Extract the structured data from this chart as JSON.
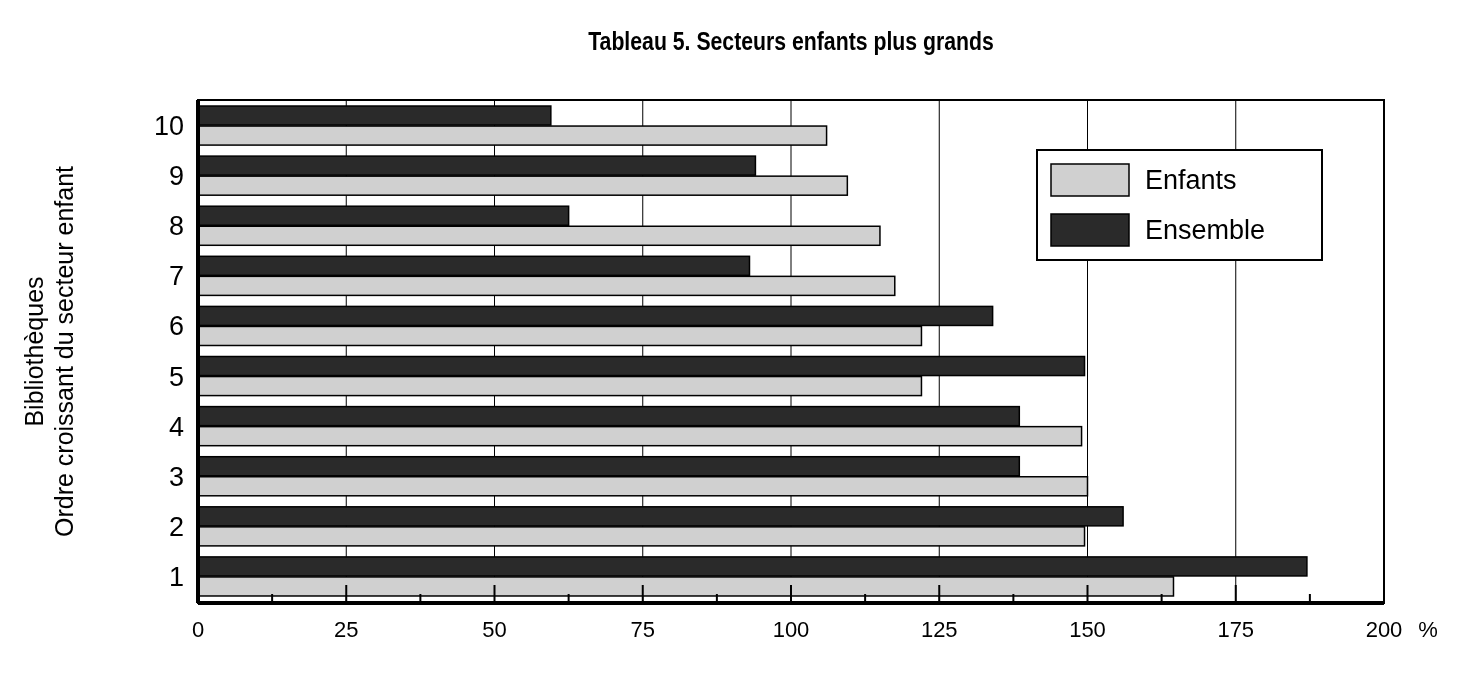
{
  "chart_data": {
    "type": "bar",
    "orientation": "horizontal",
    "title": "Tableau 5. Secteurs enfants plus grands",
    "ylabel": "Bibliothèques\nOrdre croissant du secteur enfant",
    "xlabel": "%",
    "categories": [
      "10",
      "9",
      "8",
      "7",
      "6",
      "5",
      "4",
      "3",
      "2",
      "1"
    ],
    "series": [
      {
        "name": "Enfants",
        "color": "#d0d0d0",
        "values": [
          106,
          109.5,
          115,
          117.5,
          122,
          122,
          149,
          150,
          149.5,
          164.5
        ]
      },
      {
        "name": "Ensemble",
        "color": "#2a2a2a",
        "values": [
          59.5,
          94,
          62.5,
          93,
          134,
          149.5,
          138.5,
          138.5,
          156,
          187
        ]
      }
    ],
    "xlim": [
      0,
      200
    ],
    "xticks": [
      0,
      {
        "value": 12.5,
        "label": null
      },
      25,
      {
        "value": 37.5,
        "label": null
      },
      50,
      {
        "value": 62.5,
        "label": null
      },
      75,
      {
        "value": 87.5,
        "label": null
      },
      100,
      {
        "value": 112.5,
        "label": null
      },
      125,
      {
        "value": 137.5,
        "label": null
      },
      150,
      {
        "value": 162.5,
        "label": null
      },
      175,
      {
        "value": 187.5,
        "label": null
      },
      200
    ],
    "grid": "x",
    "legend": "top right"
  }
}
